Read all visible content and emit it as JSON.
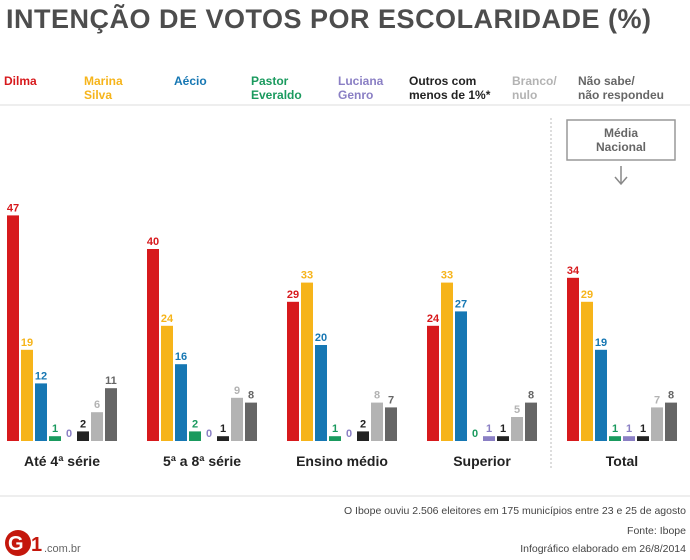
{
  "title": "INTENÇÃO DE VOTOS POR ESCOLARIDADE (%)",
  "legend": [
    {
      "lines": [
        "Dilma"
      ],
      "color": "#d7191c"
    },
    {
      "lines": [
        "Marina",
        "Silva"
      ],
      "color": "#f6b41a"
    },
    {
      "lines": [
        "Aécio"
      ],
      "color": "#1677b3"
    },
    {
      "lines": [
        "Pastor",
        "Everaldo"
      ],
      "color": "#1a9a5e"
    },
    {
      "lines": [
        "Luciana",
        "Genro"
      ],
      "color": "#8a7fc4"
    },
    {
      "lines": [
        "Outros com",
        "menos de 1%*"
      ],
      "color": "#222222"
    },
    {
      "lines": [
        "Branco/",
        "nulo"
      ],
      "color": "#b3b3b3"
    },
    {
      "lines": [
        "Não sabe/",
        "não respondeu"
      ],
      "color": "#666666"
    }
  ],
  "chart_data": {
    "type": "bar",
    "title": "INTENÇÃO DE VOTOS POR ESCOLARIDADE (%)",
    "categories": [
      "Até 4ª série",
      "5ª a 8ª série",
      "Ensino médio",
      "Superior",
      "Total"
    ],
    "series": [
      {
        "name": "Dilma",
        "color": "#d7191c",
        "values": [
          47,
          40,
          29,
          24,
          34
        ]
      },
      {
        "name": "Marina Silva",
        "color": "#f6b41a",
        "values": [
          19,
          24,
          33,
          33,
          29
        ]
      },
      {
        "name": "Aécio",
        "color": "#1677b3",
        "values": [
          12,
          16,
          20,
          27,
          19
        ]
      },
      {
        "name": "Pastor Everaldo",
        "color": "#1a9a5e",
        "values": [
          1,
          2,
          1,
          0,
          1
        ]
      },
      {
        "name": "Luciana Genro",
        "color": "#8a7fc4",
        "values": [
          0,
          0,
          0,
          1,
          1
        ]
      },
      {
        "name": "Outros com menos de 1%*",
        "color": "#222222",
        "values": [
          2,
          1,
          2,
          1,
          1
        ]
      },
      {
        "name": "Branco/nulo",
        "color": "#b3b3b3",
        "values": [
          6,
          9,
          8,
          5,
          7
        ]
      },
      {
        "name": "Não sabe/não respondeu",
        "color": "#666666",
        "values": [
          11,
          8,
          7,
          8,
          8
        ]
      }
    ],
    "ylim": [
      0,
      50
    ],
    "xlabel": "",
    "ylabel": ""
  },
  "media_nacional_label": [
    "Média",
    "Nacional"
  ],
  "source_note": "O Ibope ouviu 2.506 eleitores em 175 municípios entre 23 e 25 de agosto",
  "fonte": "Fonte: Ibope",
  "infografico": "Infográfico elaborado em 26/8/2014",
  "logo": {
    "mark": "G1",
    "domain": ".com.br"
  }
}
